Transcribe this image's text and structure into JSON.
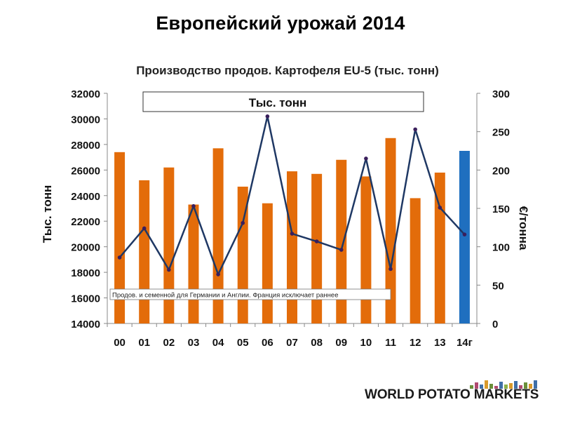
{
  "page": {
    "title": "Европейский урожай 2014",
    "logo_text": "WORLD POTATO MARKETS",
    "logo_bar_colors": [
      "#6a8f3a",
      "#b04a6f",
      "#3f6fa8",
      "#d99a2b",
      "#6a8f3a",
      "#b04a6f",
      "#3f6fa8",
      "#8cb24a",
      "#d99a2b",
      "#3f6fa8",
      "#b04a6f",
      "#6a8f3a",
      "#d99a2b",
      "#3f6fa8"
    ]
  },
  "chart_data": {
    "type": "bar",
    "title": "Производство продов. Картофеля EU-5 (тыс. тонн)",
    "legend_box_text": "Тыс. тонн",
    "footnote": "Продов. и семенной для Германии и Англии. Франция исключает раннее",
    "ylabel": "Тыс. тонн",
    "y2label": "€/тонна",
    "categories": [
      "00",
      "01",
      "02",
      "03",
      "04",
      "05",
      "06",
      "07",
      "08",
      "09",
      "10",
      "11",
      "12",
      "13",
      "14г"
    ],
    "ylim": [
      14000,
      32000
    ],
    "yticks": [
      "14000",
      "16000",
      "18000",
      "20000",
      "22000",
      "24000",
      "26000",
      "28000",
      "30000",
      "32000"
    ],
    "y2lim": [
      0,
      300
    ],
    "y2ticks": [
      "0",
      "50",
      "100",
      "150",
      "200",
      "250",
      "300"
    ],
    "series": [
      {
        "type": "bar",
        "axis": "left",
        "values": [
          27400,
          25200,
          26200,
          23300,
          27700,
          24700,
          23400,
          25900,
          25700,
          26800,
          25500,
          28500,
          23800,
          25800,
          27500
        ],
        "colors": [
          "#e36c0a",
          "#e36c0a",
          "#e36c0a",
          "#e36c0a",
          "#e36c0a",
          "#e36c0a",
          "#e36c0a",
          "#e36c0a",
          "#e36c0a",
          "#e36c0a",
          "#e36c0a",
          "#e36c0a",
          "#e36c0a",
          "#e36c0a",
          "#1f6fbf"
        ]
      },
      {
        "type": "line",
        "axis": "right",
        "color": "#1f3864",
        "values": [
          86,
          124,
          70,
          153,
          64,
          131,
          270,
          117,
          107,
          96,
          215,
          71,
          253,
          151,
          116
        ]
      }
    ],
    "grid": false
  }
}
